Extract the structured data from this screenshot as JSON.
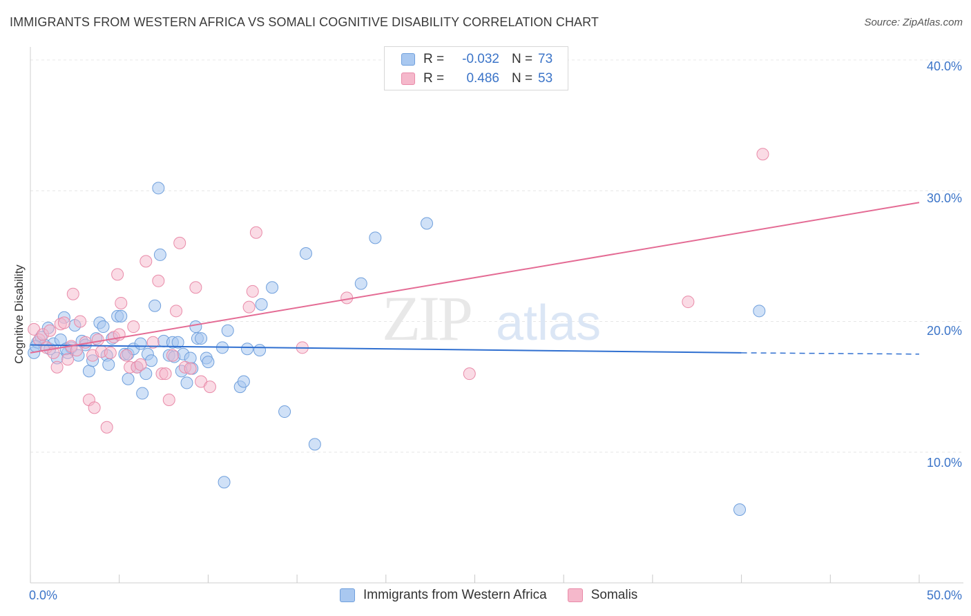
{
  "header": {
    "title": "IMMIGRANTS FROM WESTERN AFRICA VS SOMALI COGNITIVE DISABILITY CORRELATION CHART",
    "source": "Source: ZipAtlas.com"
  },
  "watermark": {
    "part1": "ZIP",
    "part2": "atlas"
  },
  "legend": {
    "rows": [
      {
        "r_label": "R =",
        "r_value": "-0.032",
        "n_label": "N =",
        "n_value": "73"
      },
      {
        "r_label": "R =",
        "r_value": "0.486",
        "n_label": "N =",
        "n_value": "53"
      }
    ]
  },
  "bottom_legend": {
    "series1": "Immigrants from Western Africa",
    "series2": "Somalis"
  },
  "axes": {
    "ylabel": "Cognitive Disability",
    "x_min_label": "0.0%",
    "x_max_label": "50.0%",
    "y_ticks": [
      "10.0%",
      "20.0%",
      "30.0%",
      "40.0%"
    ]
  },
  "colors": {
    "blue_fill": "#a9c8f0",
    "blue_stroke": "#6f9fdc",
    "blue_line": "#2f6fd0",
    "pink_fill": "#f5b8cb",
    "pink_stroke": "#e98aa8",
    "pink_line": "#e46b94",
    "tick_text": "#3b74c8",
    "grid": "#e6e6e6"
  },
  "chart_data": {
    "type": "scatter",
    "xlim": [
      0,
      50
    ],
    "ylim": [
      0,
      41
    ],
    "series": [
      {
        "name": "Immigrants from Western Africa",
        "color": "#a9c8f0",
        "trend": {
          "x": [
            0,
            40,
            50
          ],
          "y": [
            18.2,
            17.6,
            17.5
          ],
          "solid_until": 40
        },
        "points": [
          [
            0.2,
            17.6
          ],
          [
            0.4,
            18.4
          ],
          [
            0.6,
            18.8
          ],
          [
            0.8,
            18.2
          ],
          [
            1.0,
            19.5
          ],
          [
            1.1,
            17.9
          ],
          [
            1.3,
            18.3
          ],
          [
            1.5,
            17.2
          ],
          [
            1.7,
            18.6
          ],
          [
            1.9,
            20.3
          ],
          [
            2.1,
            17.6
          ],
          [
            2.3,
            18.0
          ],
          [
            2.5,
            19.7
          ],
          [
            2.7,
            17.4
          ],
          [
            2.9,
            18.5
          ],
          [
            3.1,
            18.2
          ],
          [
            3.3,
            16.2
          ],
          [
            3.5,
            17.0
          ],
          [
            3.7,
            18.7
          ],
          [
            3.9,
            19.9
          ],
          [
            4.1,
            19.6
          ],
          [
            4.3,
            17.4
          ],
          [
            4.4,
            16.7
          ],
          [
            4.6,
            18.7
          ],
          [
            4.9,
            20.4
          ],
          [
            5.1,
            20.4
          ],
          [
            5.3,
            17.5
          ],
          [
            5.5,
            17.5
          ],
          [
            5.5,
            15.6
          ],
          [
            5.8,
            17.9
          ],
          [
            6.0,
            16.5
          ],
          [
            6.2,
            18.3
          ],
          [
            6.3,
            14.5
          ],
          [
            6.5,
            16.0
          ],
          [
            6.6,
            17.5
          ],
          [
            6.8,
            17.0
          ],
          [
            7.0,
            21.2
          ],
          [
            7.2,
            30.2
          ],
          [
            7.3,
            25.1
          ],
          [
            7.5,
            18.5
          ],
          [
            7.8,
            17.4
          ],
          [
            8.0,
            18.4
          ],
          [
            8.1,
            17.3
          ],
          [
            8.3,
            18.4
          ],
          [
            8.5,
            16.2
          ],
          [
            8.6,
            17.5
          ],
          [
            8.8,
            15.3
          ],
          [
            9.0,
            17.2
          ],
          [
            9.1,
            16.4
          ],
          [
            9.3,
            19.6
          ],
          [
            9.4,
            18.7
          ],
          [
            9.6,
            18.7
          ],
          [
            9.9,
            17.2
          ],
          [
            10.0,
            16.9
          ],
          [
            10.8,
            18.0
          ],
          [
            10.9,
            7.7
          ],
          [
            11.1,
            19.3
          ],
          [
            11.8,
            15.0
          ],
          [
            12.0,
            15.4
          ],
          [
            12.2,
            17.9
          ],
          [
            12.9,
            17.8
          ],
          [
            13.0,
            21.3
          ],
          [
            13.6,
            22.6
          ],
          [
            14.3,
            13.1
          ],
          [
            15.5,
            25.2
          ],
          [
            16.0,
            10.6
          ],
          [
            18.6,
            22.9
          ],
          [
            19.4,
            26.4
          ],
          [
            22.3,
            27.5
          ],
          [
            39.9,
            5.6
          ],
          [
            41.0,
            20.8
          ],
          [
            0.3,
            18.1
          ],
          [
            2.0,
            17.9
          ]
        ]
      },
      {
        "name": "Somalis",
        "color": "#f5b8cb",
        "trend": {
          "x": [
            0,
            50
          ],
          "y": [
            17.6,
            29.1
          ]
        },
        "points": [
          [
            0.2,
            19.4
          ],
          [
            0.5,
            18.6
          ],
          [
            0.7,
            19.0
          ],
          [
            0.9,
            18.0
          ],
          [
            1.1,
            19.3
          ],
          [
            1.3,
            17.6
          ],
          [
            1.5,
            16.5
          ],
          [
            1.7,
            19.8
          ],
          [
            1.9,
            19.9
          ],
          [
            2.1,
            17.1
          ],
          [
            2.3,
            18.1
          ],
          [
            2.4,
            22.1
          ],
          [
            2.6,
            17.8
          ],
          [
            2.8,
            20.0
          ],
          [
            3.1,
            18.4
          ],
          [
            3.3,
            14.0
          ],
          [
            3.5,
            17.4
          ],
          [
            3.6,
            13.4
          ],
          [
            3.8,
            18.6
          ],
          [
            4.0,
            17.7
          ],
          [
            4.3,
            11.9
          ],
          [
            4.5,
            17.6
          ],
          [
            4.7,
            18.8
          ],
          [
            4.9,
            23.6
          ],
          [
            5.0,
            19.0
          ],
          [
            5.1,
            21.4
          ],
          [
            5.4,
            17.4
          ],
          [
            5.6,
            16.5
          ],
          [
            5.8,
            19.6
          ],
          [
            6.0,
            16.5
          ],
          [
            6.2,
            16.7
          ],
          [
            6.5,
            24.6
          ],
          [
            6.9,
            18.4
          ],
          [
            7.2,
            23.1
          ],
          [
            7.4,
            16.0
          ],
          [
            7.6,
            16.0
          ],
          [
            7.8,
            14.0
          ],
          [
            8.0,
            17.4
          ],
          [
            8.2,
            20.8
          ],
          [
            8.4,
            26.0
          ],
          [
            8.7,
            16.5
          ],
          [
            9.0,
            16.4
          ],
          [
            9.3,
            22.6
          ],
          [
            9.6,
            15.4
          ],
          [
            10.1,
            15.0
          ],
          [
            12.3,
            21.1
          ],
          [
            12.5,
            22.3
          ],
          [
            12.7,
            26.8
          ],
          [
            15.3,
            18.0
          ],
          [
            17.8,
            21.8
          ],
          [
            24.7,
            16.0
          ],
          [
            37.0,
            21.5
          ],
          [
            41.2,
            32.8
          ]
        ]
      }
    ]
  }
}
